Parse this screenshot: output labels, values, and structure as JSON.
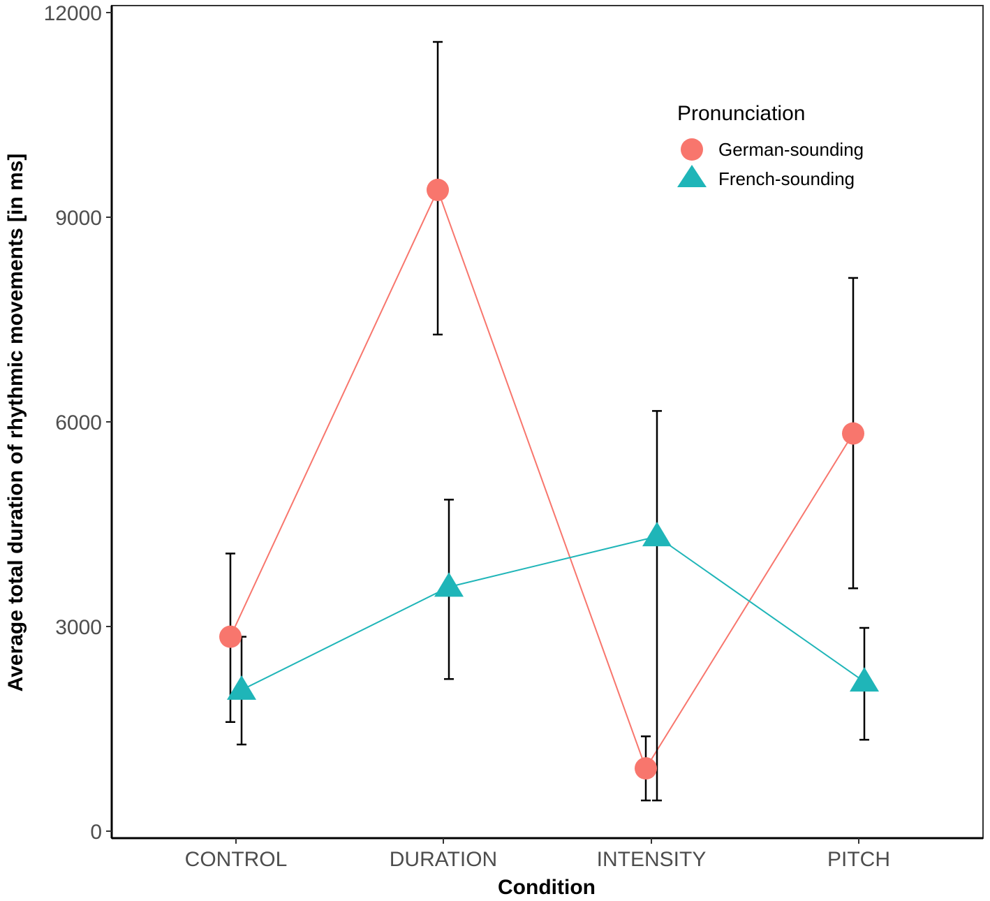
{
  "chart_data": {
    "type": "line",
    "title": "",
    "xlabel": "Condition",
    "ylabel": "Average total duration of rhythmic movements [in ms]",
    "categories": [
      "CONTROL",
      "DURATION",
      "INTENSITY",
      "PITCH"
    ],
    "ylim": [
      0,
      12000
    ],
    "yticks": [
      0,
      3000,
      6000,
      9000,
      12000
    ],
    "ytick_labels": [
      "0",
      "3000",
      "6000",
      "9000",
      "12000"
    ],
    "grid": false,
    "legend": {
      "title": "Pronunciation",
      "position": "top-right"
    },
    "series": [
      {
        "name": "German-sounding",
        "marker": "circle",
        "color": "#F8766D",
        "values": [
          2850,
          9400,
          920,
          5830
        ],
        "error_low": [
          1600,
          7280,
          450,
          3560
        ],
        "error_high": [
          4070,
          11570,
          1390,
          8110
        ]
      },
      {
        "name": "French-sounding",
        "marker": "triangle",
        "color": "#1FB5B8",
        "values": [
          2070,
          3580,
          4320,
          2190
        ],
        "error_low": [
          1270,
          2230,
          450,
          1340
        ],
        "error_high": [
          2850,
          4860,
          6160,
          2980
        ]
      }
    ]
  }
}
